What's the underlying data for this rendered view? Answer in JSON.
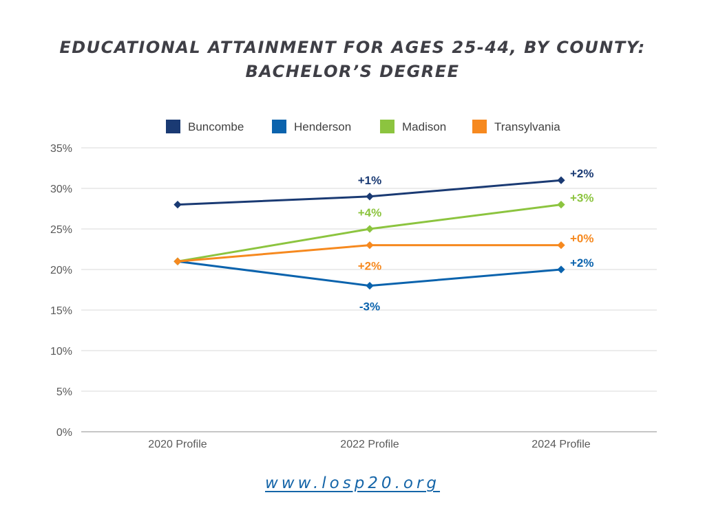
{
  "title_lines": [
    "EDUCATIONAL ATTAINMENT FOR AGES 25-44, BY COUNTY:",
    "BACHELOR’S DEGREE"
  ],
  "footer_url": "www.losp20.org",
  "chart_data": {
    "type": "line",
    "title": "EDUCATIONAL ATTAINMENT FOR AGES 25-44, BY COUNTY: BACHELOR’S DEGREE",
    "x": [
      "2020 Profile",
      "2022 Profile",
      "2024 Profile"
    ],
    "ylim": [
      0,
      35
    ],
    "yticks": [
      0,
      5,
      10,
      15,
      20,
      25,
      30,
      35
    ],
    "ytick_labels": [
      "0%",
      "5%",
      "10%",
      "15%",
      "20%",
      "25%",
      "30%",
      "35%"
    ],
    "xlabel": "",
    "ylabel": "",
    "grid": true,
    "legend": "top",
    "series": [
      {
        "name": "Buncombe",
        "color": "#1a3a73",
        "values": [
          28,
          29,
          31
        ],
        "labels": [
          null,
          "+1%",
          "+2%"
        ],
        "label_pos": [
          null,
          "above",
          "right"
        ]
      },
      {
        "name": "Henderson",
        "color": "#0b63ad",
        "values": [
          21,
          18,
          20
        ],
        "labels": [
          null,
          "-3%",
          "+2%"
        ],
        "label_pos": [
          null,
          "below",
          "right"
        ]
      },
      {
        "name": "Madison",
        "color": "#8cc43f",
        "values": [
          21,
          25,
          28
        ],
        "labels": [
          null,
          "+4%",
          "+3%"
        ],
        "label_pos": [
          null,
          "above",
          "right"
        ]
      },
      {
        "name": "Transylvania",
        "color": "#f6891f",
        "values": [
          21,
          23,
          23
        ],
        "labels": [
          null,
          "+2%",
          "+0%"
        ],
        "label_pos": [
          null,
          "below",
          "right"
        ]
      }
    ]
  }
}
